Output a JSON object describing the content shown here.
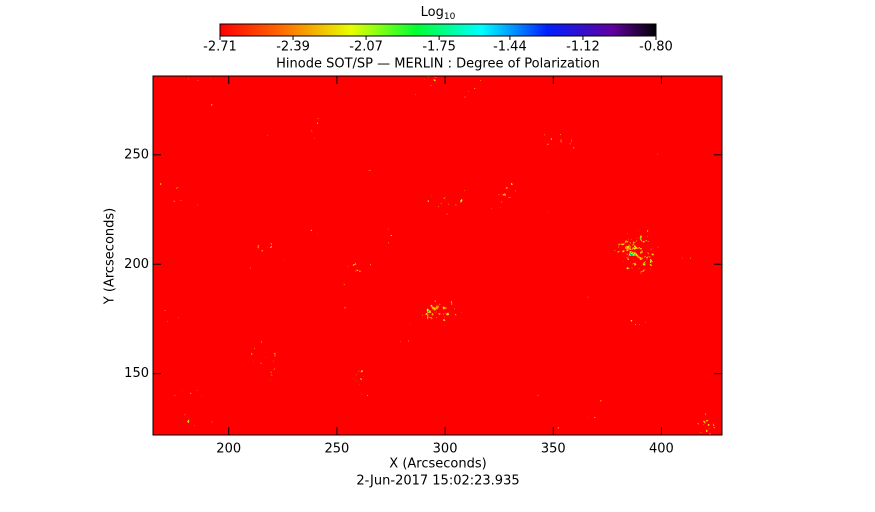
{
  "chart_data": {
    "type": "image",
    "title": "Hinode SOT/SP — MERLIN : Degree of Polarization",
    "xlabel": "X (Arcseconds)",
    "ylabel": "Y (Arcseconds)",
    "footer": "2-Jun-2017  15:02:23.935",
    "colorbar_label": "Log",
    "colorbar_label_sub": "10",
    "colorbar_ticks": [
      -2.71,
      -2.39,
      -2.07,
      -1.75,
      -1.44,
      -1.12,
      {
        "value": -0.8,
        "label": "-0.80"
      }
    ],
    "colorbar_lim": [
      -2.71,
      -0.8
    ],
    "xlim": [
      165,
      428
    ],
    "xticks": [
      200,
      250,
      300,
      350,
      400
    ],
    "ylim": [
      122,
      286
    ],
    "yticks": [
      150,
      200,
      250
    ]
  }
}
